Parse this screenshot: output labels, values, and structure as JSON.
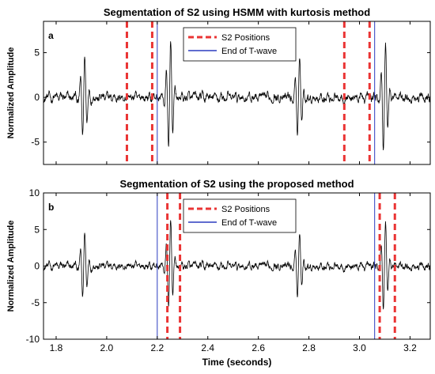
{
  "chart_data": [
    {
      "type": "line",
      "panel_label": "a",
      "title": "Segmentation of S2 using HSMM with kurtosis method",
      "xlabel": "",
      "ylabel": "Normalized Amplitude",
      "xlim": [
        1.75,
        3.28
      ],
      "ylim": [
        -7.5,
        8.5
      ],
      "xticks": [
        1.8,
        2.0,
        2.2,
        2.4,
        2.6,
        2.8,
        3.0,
        3.2
      ],
      "xtick_labels": [
        "",
        "",
        "",
        "",
        "",
        "",
        "",
        ""
      ],
      "yticks": [
        -5,
        0,
        5
      ],
      "ytick_labels": [
        "-5",
        "0",
        "5"
      ],
      "legend": {
        "placement": "top-center",
        "entries": [
          {
            "label": "S2 Positions",
            "color": "#ea3434",
            "style": "dashed"
          },
          {
            "label": "End of T-wave",
            "color": "#2b3bbf",
            "style": "solid"
          }
        ]
      },
      "s2_positions": [
        2.08,
        2.18,
        2.94,
        3.04
      ],
      "t_wave_end": [
        2.2,
        3.06
      ],
      "signal_color": "#000000",
      "bursts": [
        {
          "center": 1.91,
          "amp": 5.0
        },
        {
          "center": 2.25,
          "amp": 6.8
        },
        {
          "center": 2.76,
          "amp": 5.0
        },
        {
          "center": 3.1,
          "amp": 6.5
        }
      ]
    },
    {
      "type": "line",
      "panel_label": "b",
      "title": "Segmentation of S2 using the proposed method",
      "xlabel": "Time (seconds)",
      "ylabel": "Normalized Amplitude",
      "xlim": [
        1.75,
        3.28
      ],
      "ylim": [
        -10,
        10
      ],
      "xticks": [
        1.8,
        2.0,
        2.2,
        2.4,
        2.6,
        2.8,
        3.0,
        3.2
      ],
      "xtick_labels": [
        "1.8",
        "2.0",
        "2.2",
        "2.4",
        "2.6",
        "2.8",
        "3.0",
        "3.2"
      ],
      "yticks": [
        -10,
        -5,
        0,
        5,
        10
      ],
      "ytick_labels": [
        "-10",
        "-5",
        "0",
        "5",
        "10"
      ],
      "legend": {
        "placement": "top-center",
        "entries": [
          {
            "label": "S2 Positions",
            "color": "#ea3434",
            "style": "dashed"
          },
          {
            "label": "End of T-wave",
            "color": "#2b3bbf",
            "style": "solid"
          }
        ]
      },
      "s2_positions": [
        2.24,
        2.29,
        3.08,
        3.14
      ],
      "t_wave_end": [
        2.2,
        3.06
      ],
      "signal_color": "#000000",
      "bursts": [
        {
          "center": 1.91,
          "amp": 5.0
        },
        {
          "center": 2.25,
          "amp": 6.8
        },
        {
          "center": 2.76,
          "amp": 5.0
        },
        {
          "center": 3.1,
          "amp": 6.5
        }
      ]
    }
  ]
}
